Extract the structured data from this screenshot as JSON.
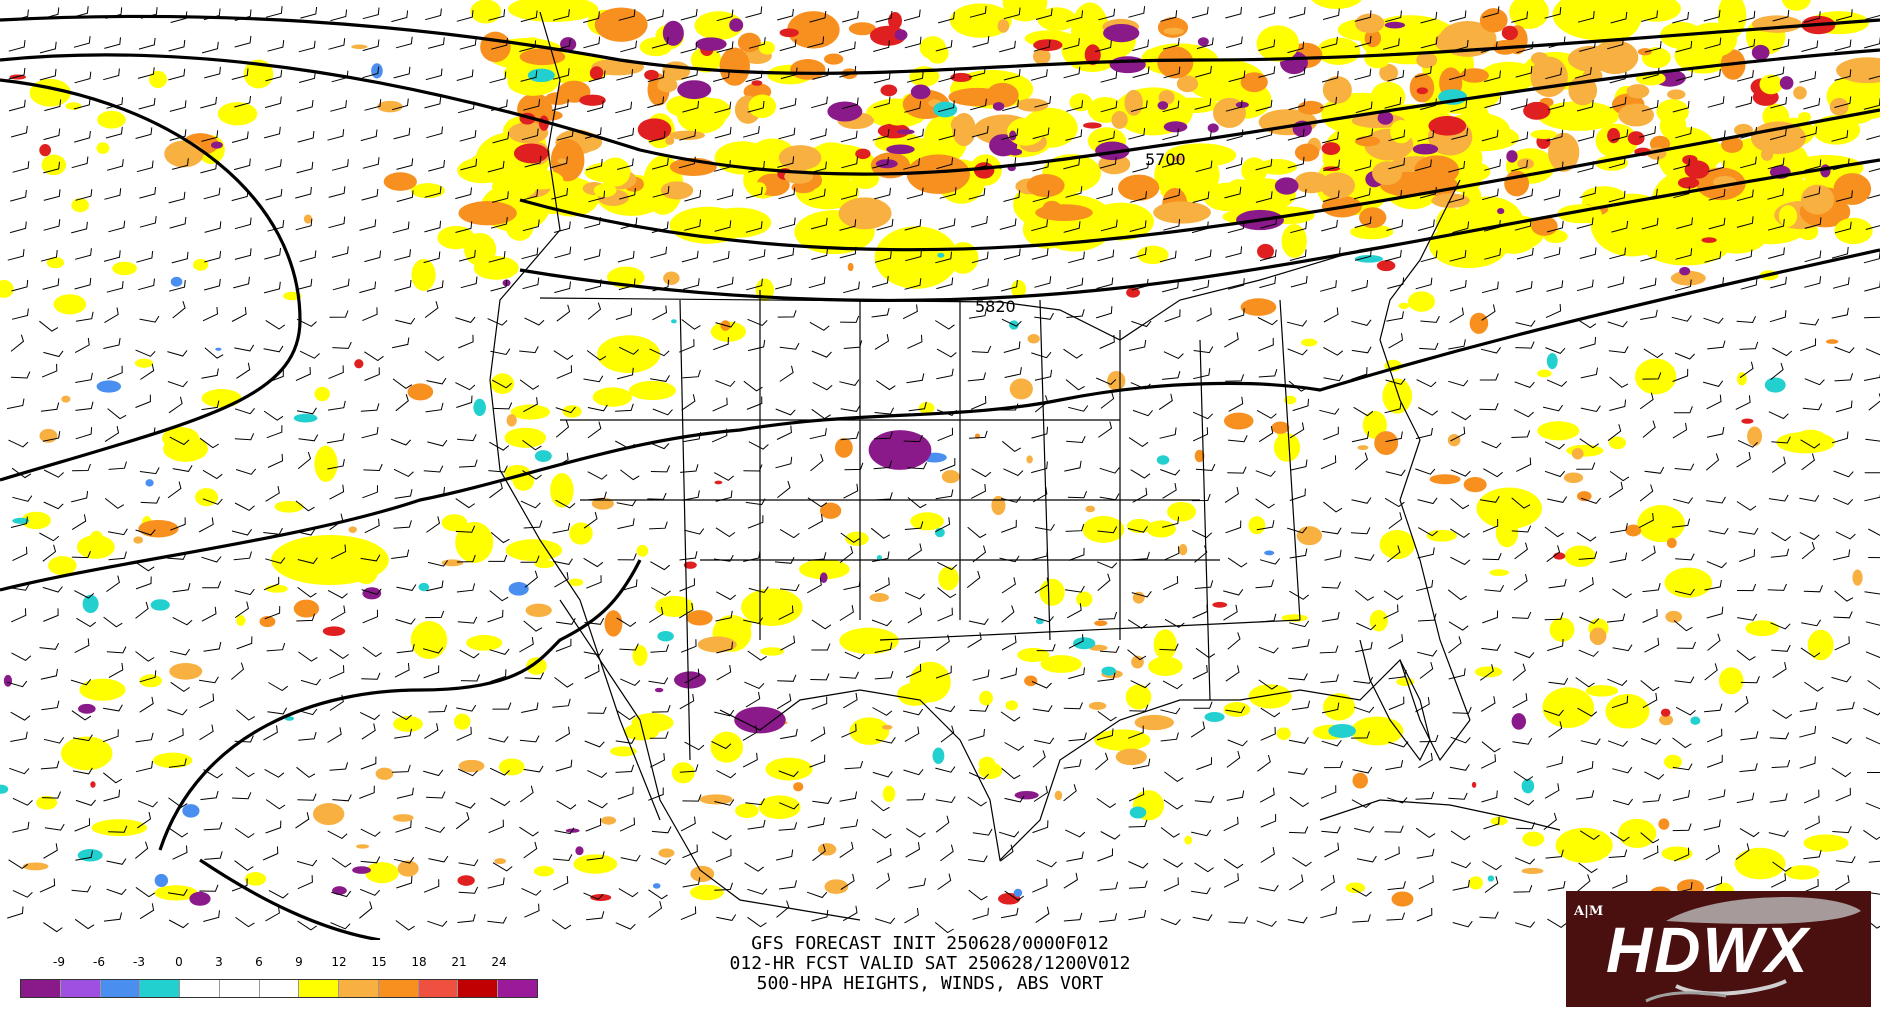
{
  "product": {
    "caption_lines": [
      "GFS FORECAST INIT 250628/0000F012",
      "012-HR FCST VALID SAT 250628/1200V012",
      "500-HPA HEIGHTS, WINDS, ABS VORT"
    ]
  },
  "contour_labels": [
    "5700",
    "5820"
  ],
  "colorbar": {
    "tick_labels": [
      "-9",
      "-6",
      "-3",
      "0",
      "3",
      "6",
      "9",
      "12",
      "15",
      "18",
      "21",
      "24"
    ],
    "colors": [
      "#8a1a8a",
      "#a050e0",
      "#4a8ff0",
      "#22d0d0",
      "#ffffff",
      "#ffffff",
      "#ffffff",
      "#ffff00",
      "#f8b040",
      "#f89020",
      "#f05040",
      "#c00000",
      "#9a1a9a"
    ]
  },
  "logo": {
    "text": "HDWX",
    "emblem": "A|M"
  },
  "palette": {
    "yellow": "#ffff00",
    "light_orange": "#f8b040",
    "orange": "#f89020",
    "red": "#e02020",
    "purple": "#8a1a8a",
    "cyan": "#22d0d0",
    "blue": "#4a8ff0"
  }
}
